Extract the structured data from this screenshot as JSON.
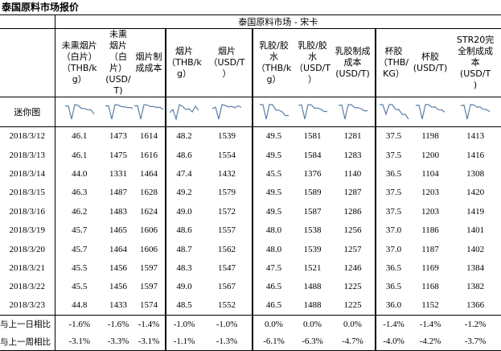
{
  "title": "泰国原料市场报价",
  "section_header": "泰国原料市场 - 宋卡",
  "columns": [
    {
      "header": "未熏烟片（白片）（THB/kg）",
      "lines": [
        "未熏烟片",
        "（白片）",
        "（THB/k",
        "g）"
      ]
    },
    {
      "header": "未熏烟片（白片）（USD/T）",
      "lines": [
        "未熏",
        "烟片",
        "（白",
        "片）",
        "(USD/",
        "T)"
      ]
    },
    {
      "header": "烟片制成成本",
      "lines": [
        "烟片制",
        "成成本"
      ]
    },
    {
      "header": "烟片（THB/kg）",
      "lines": [
        "烟片",
        "（THB/k",
        "g）"
      ]
    },
    {
      "header": "烟片（USD/T）",
      "lines": [
        "烟片",
        "（USD/T",
        "）"
      ]
    },
    {
      "header": "乳胶/胶水（THB/kg）",
      "lines": [
        "乳胶/胶",
        "水",
        "（THB/k",
        "g）"
      ]
    },
    {
      "header": "乳胶/胶水（USD/T）",
      "lines": [
        "乳胶/胶",
        "水",
        "（USD/T",
        "）"
      ]
    },
    {
      "header": "乳胶制成成本(USD/T)",
      "lines": [
        "乳胶制成",
        "成本",
        "(USD/T)"
      ]
    },
    {
      "header": "杯胶（THB/KG）",
      "lines": [
        "杯胶",
        "（THB/",
        "KG）"
      ]
    },
    {
      "header": "杯胶(USD/T)",
      "lines": [
        "杯胶",
        "(USD/T)"
      ]
    },
    {
      "header": "STR20完全制成成本(USD/T)",
      "lines": [
        "STR20完",
        "全制成成",
        "本",
        "(USD/T",
        ")"
      ]
    }
  ],
  "spark_label": "迷你图",
  "rows": [
    {
      "date": "2018/3/12",
      "values": [
        "46.1",
        "1473",
        "1614",
        "48.2",
        "1539",
        "49.5",
        "1581",
        "1281",
        "37.5",
        "1198",
        "1413"
      ]
    },
    {
      "date": "2018/3/13",
      "values": [
        "46.1",
        "1475",
        "1616",
        "48.6",
        "1554",
        "49.5",
        "1584",
        "1283",
        "37.5",
        "1200",
        "1416"
      ]
    },
    {
      "date": "2018/3/14",
      "values": [
        "44.0",
        "1331",
        "1464",
        "47.4",
        "1432",
        "45.5",
        "1376",
        "1140",
        "36.5",
        "1104",
        "1308"
      ]
    },
    {
      "date": "2018/3/15",
      "values": [
        "46.3",
        "1487",
        "1628",
        "49.2",
        "1579",
        "49.5",
        "1589",
        "1287",
        "37.5",
        "1203",
        "1420"
      ]
    },
    {
      "date": "2018/3/16",
      "values": [
        "46.2",
        "1483",
        "1624",
        "49.0",
        "1572",
        "49.5",
        "1587",
        "1286",
        "37.5",
        "1203",
        "1419"
      ]
    },
    {
      "date": "2018/3/19",
      "values": [
        "45.7",
        "1465",
        "1606",
        "48.6",
        "1557",
        "48.0",
        "1538",
        "1256",
        "37.0",
        "1186",
        "1401"
      ]
    },
    {
      "date": "2018/3/20",
      "values": [
        "45.7",
        "1464",
        "1606",
        "48.7",
        "1562",
        "48.0",
        "1539",
        "1257",
        "37.0",
        "1187",
        "1402"
      ]
    },
    {
      "date": "2018/3/21",
      "values": [
        "45.5",
        "1456",
        "1597",
        "48.3",
        "1547",
        "47.5",
        "1521",
        "1246",
        "36.5",
        "1169",
        "1384"
      ]
    },
    {
      "date": "2018/3/22",
      "values": [
        "45.5",
        "1456",
        "1597",
        "49.0",
        "1567",
        "46.5",
        "1488",
        "1225",
        "36.5",
        "1168",
        "1382"
      ]
    },
    {
      "date": "2018/3/23",
      "values": [
        "44.8",
        "1433",
        "1574",
        "48.5",
        "1552",
        "46.5",
        "1488",
        "1225",
        "36.0",
        "1152",
        "1366"
      ]
    }
  ],
  "changes": [
    {
      "label": "与上一日相比",
      "values": [
        "-1.6%",
        "-1.6%",
        "-1.4%",
        "-1.0%",
        "-1.0%",
        "0.0%",
        "0.0%",
        "0.0%",
        "-1.4%",
        "-1.4%",
        "-1.2%"
      ]
    },
    {
      "label": "与上一周相比",
      "values": [
        "-3.1%",
        "-3.3%",
        "-3.1%",
        "-1.1%",
        "-1.3%",
        "-6.1%",
        "-6.3%",
        "-4.7%",
        "-4.0%",
        "-4.2%",
        "-3.7%"
      ]
    }
  ],
  "sparkline_color": "#5b7fa6"
}
